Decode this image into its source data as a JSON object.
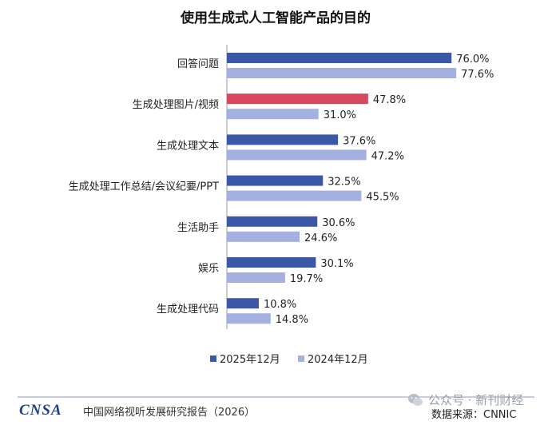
{
  "chart_data": {
    "type": "bar",
    "orientation": "horizontal",
    "title": "使用生成式人工智能产品的目的",
    "categories": [
      "回答问题",
      "生成处理图片/视频",
      "生成处理文本",
      "生成处理工作总结/会议纪要/PPT",
      "生活助手",
      "娱乐",
      "生成处理代码"
    ],
    "series": [
      {
        "name": "2025年12月",
        "color": "#3b57a8",
        "values": [
          76.0,
          47.8,
          37.6,
          32.5,
          30.6,
          30.1,
          10.8
        ],
        "labels": [
          "76.0%",
          "47.8%",
          "37.6%",
          "32.5%",
          "30.6%",
          "30.1%",
          "10.8%"
        ]
      },
      {
        "name": "2024年12月",
        "color": "#a3b0e0",
        "values": [
          77.6,
          31.0,
          47.2,
          45.5,
          24.6,
          19.7,
          14.8
        ],
        "labels": [
          "77.6%",
          "31.0%",
          "47.2%",
          "45.5%",
          "24.6%",
          "19.7%",
          "14.8%"
        ]
      }
    ],
    "highlight": {
      "series": 0,
      "category": 1,
      "color": "#d6485d"
    },
    "xlim": [
      0,
      80
    ],
    "legend_position": "bottom",
    "grid": false
  },
  "footer": {
    "logo_text": "CNSA",
    "report_name": "中国网络视听发展研究报告（2026）",
    "source": "数据来源：CNNIC",
    "watermark": "公众号 · 新刊财经"
  }
}
